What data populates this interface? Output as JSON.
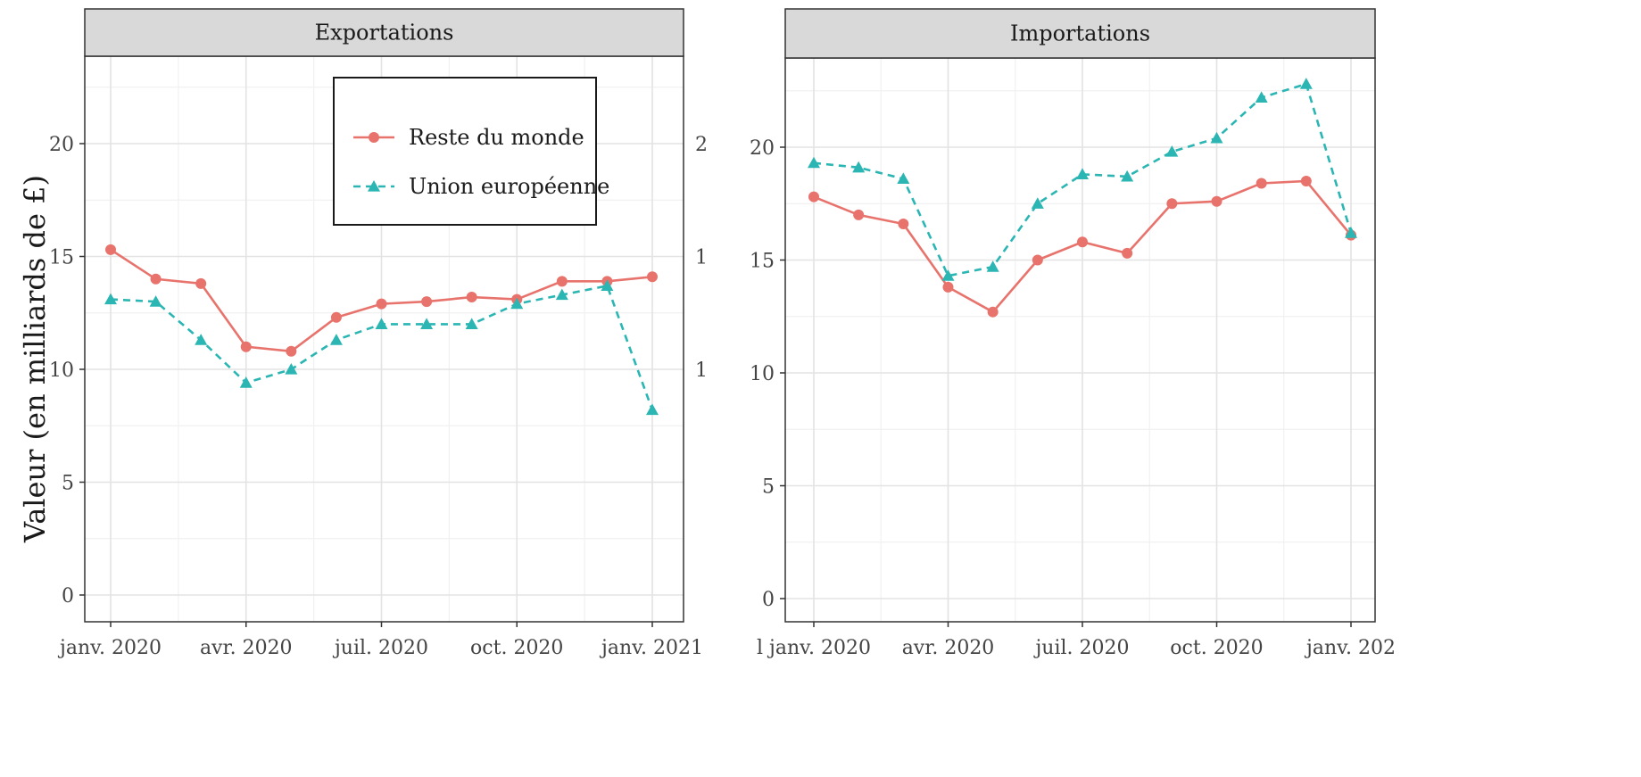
{
  "chart_data": {
    "type": "line",
    "ylabel": "Valeur (en milliards de £)",
    "legend": {
      "placement": "top-center of left panel",
      "entries": [
        "Reste du monde",
        "Union européenne"
      ]
    },
    "series_styles": [
      {
        "name": "Reste du monde",
        "color": "#e8736c",
        "marker": "circle",
        "line": "solid"
      },
      {
        "name": "Union européenne",
        "color": "#2bb6b3",
        "marker": "triangle",
        "line": "dashed"
      }
    ],
    "x_ticks": [
      "janv. 2020",
      "avr. 2020",
      "juil. 2020",
      "oct. 2020",
      "janv. 2021"
    ],
    "months": [
      "2020-01",
      "2020-02",
      "2020-03",
      "2020-04",
      "2020-05",
      "2020-06",
      "2020-07",
      "2020-08",
      "2020-09",
      "2020-10",
      "2020-11",
      "2020-12",
      "2021-01"
    ],
    "grid": true,
    "panels": [
      {
        "title": "Exportations",
        "x_tick_labels": [
          "janv. 2020",
          "avr. 2020",
          "juil. 2020",
          "oct. 2020",
          "janv. 2021"
        ],
        "y_tick_labels": [
          "0",
          "5",
          "10",
          "15",
          "20"
        ],
        "right_edge_labels": [
          "2",
          "1",
          "1"
        ],
        "ylim": [
          -1,
          24.8
        ],
        "series": [
          {
            "name": "Reste du monde",
            "values": [
              15.3,
              14.0,
              13.8,
              11.0,
              10.8,
              12.3,
              12.9,
              13.0,
              13.2,
              13.1,
              13.9,
              13.9,
              14.1
            ]
          },
          {
            "name": "Union européenne",
            "values": [
              13.1,
              13.0,
              11.3,
              9.4,
              10.0,
              11.3,
              12.0,
              12.0,
              12.0,
              12.9,
              13.3,
              13.7,
              8.2
            ]
          }
        ]
      },
      {
        "title": "Importations",
        "x_tick_labels": [
          "l janv. 2020",
          "avr. 2020",
          "juil. 2020",
          "oct. 2020",
          "janv. 202"
        ],
        "y_tick_labels": [
          "0",
          "5",
          "10",
          "15",
          "20"
        ],
        "ylim": [
          -1,
          24.1
        ],
        "series": [
          {
            "name": "Reste du monde",
            "values": [
              17.8,
              17.0,
              16.6,
              13.8,
              12.7,
              15.0,
              15.8,
              15.3,
              17.5,
              17.6,
              18.4,
              18.5,
              16.1
            ]
          },
          {
            "name": "Union européenne",
            "values": [
              19.3,
              19.1,
              18.6,
              14.3,
              14.7,
              17.5,
              18.8,
              18.7,
              19.8,
              20.4,
              22.2,
              22.8,
              16.2
            ]
          }
        ]
      }
    ]
  }
}
